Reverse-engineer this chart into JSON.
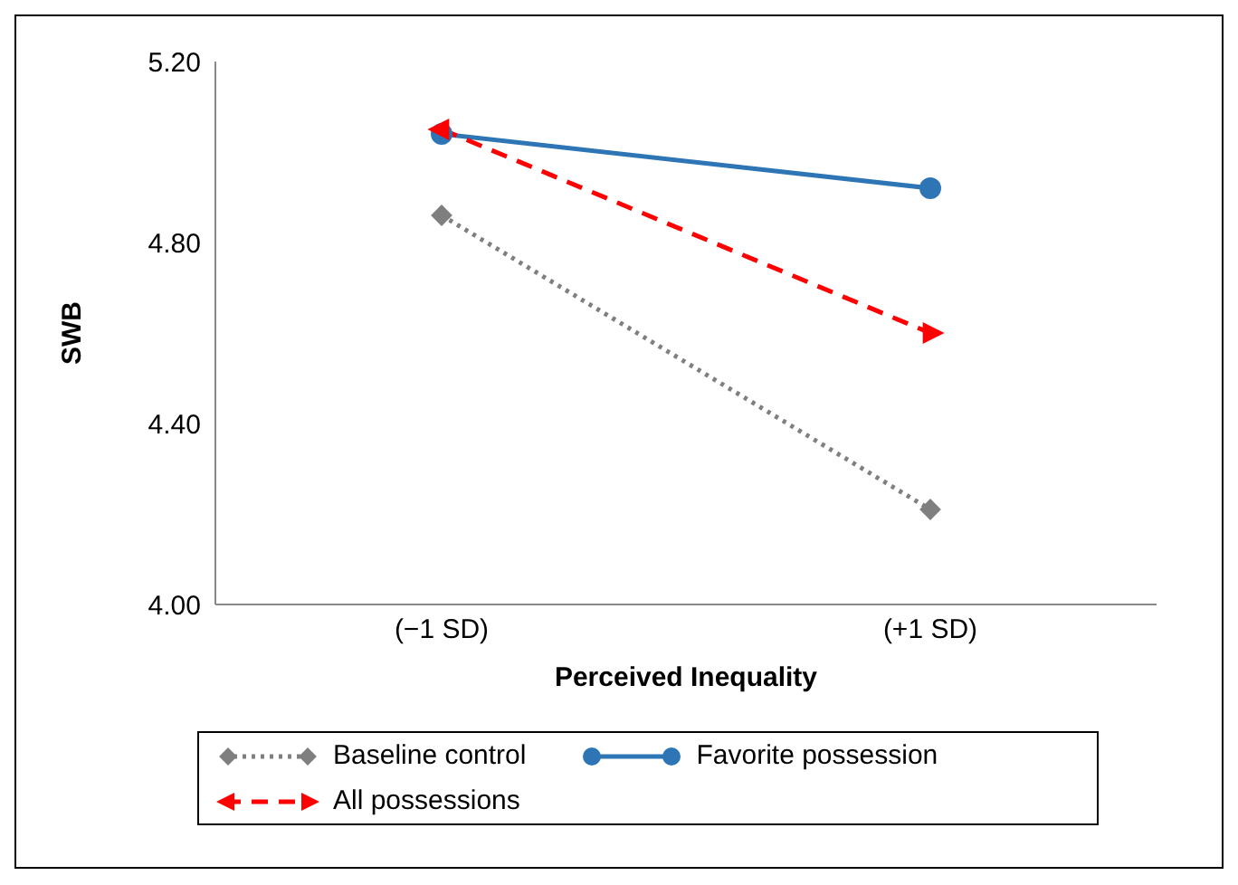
{
  "chart_data": {
    "type": "line",
    "xlabel": "Perceived Inequality",
    "ylabel": "SWB",
    "categories": [
      "(−1 SD)",
      "(+1 SD)"
    ],
    "ylim": [
      4.0,
      5.2
    ],
    "yticks": [
      {
        "value": 4.0,
        "label": "4.00"
      },
      {
        "value": 4.4,
        "label": "4.40"
      },
      {
        "value": 4.8,
        "label": "4.80"
      },
      {
        "value": 5.2,
        "label": "5.20"
      }
    ],
    "legend": "bottom",
    "series": [
      {
        "name": "Baseline control",
        "color": "#7f7f7f",
        "values": [
          4.86,
          4.21
        ],
        "marker": "diamond",
        "line_style": "dotted"
      },
      {
        "name": "Favorite possession",
        "color": "#2e75b6",
        "values": [
          5.04,
          4.92
        ],
        "marker": "circle",
        "line_style": "solid"
      },
      {
        "name": "All possessions",
        "color": "#ff0000",
        "values": [
          5.05,
          4.6
        ],
        "marker": "triangle",
        "line_style": "dashed"
      }
    ]
  }
}
